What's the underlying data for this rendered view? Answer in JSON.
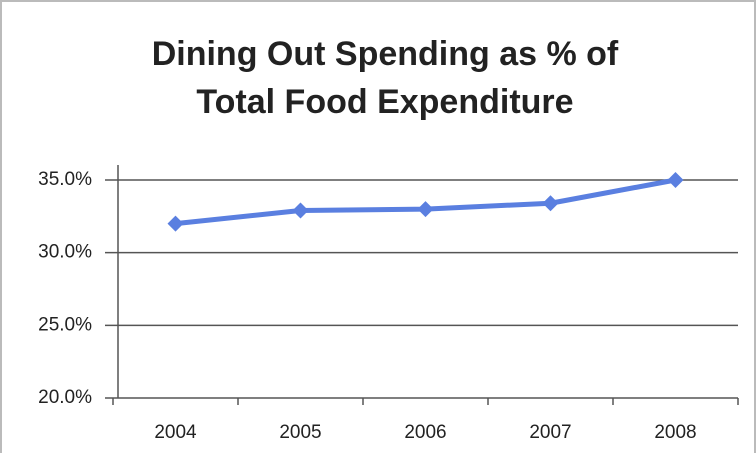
{
  "chart_data": {
    "type": "line",
    "title": "Dining Out Spending as % of Total Food Expenditure",
    "categories": [
      "2004",
      "2005",
      "2006",
      "2007",
      "2008"
    ],
    "values": [
      32.0,
      32.9,
      33.0,
      33.4,
      35.0
    ],
    "color": "#5a7fe0",
    "ylim": [
      20,
      35
    ],
    "yticks": [
      {
        "value": 20,
        "label": "20.0%"
      },
      {
        "value": 25,
        "label": "25.0%"
      },
      {
        "value": 30,
        "label": "30.0%"
      },
      {
        "value": 35,
        "label": "35.0%"
      }
    ],
    "grid": true
  }
}
